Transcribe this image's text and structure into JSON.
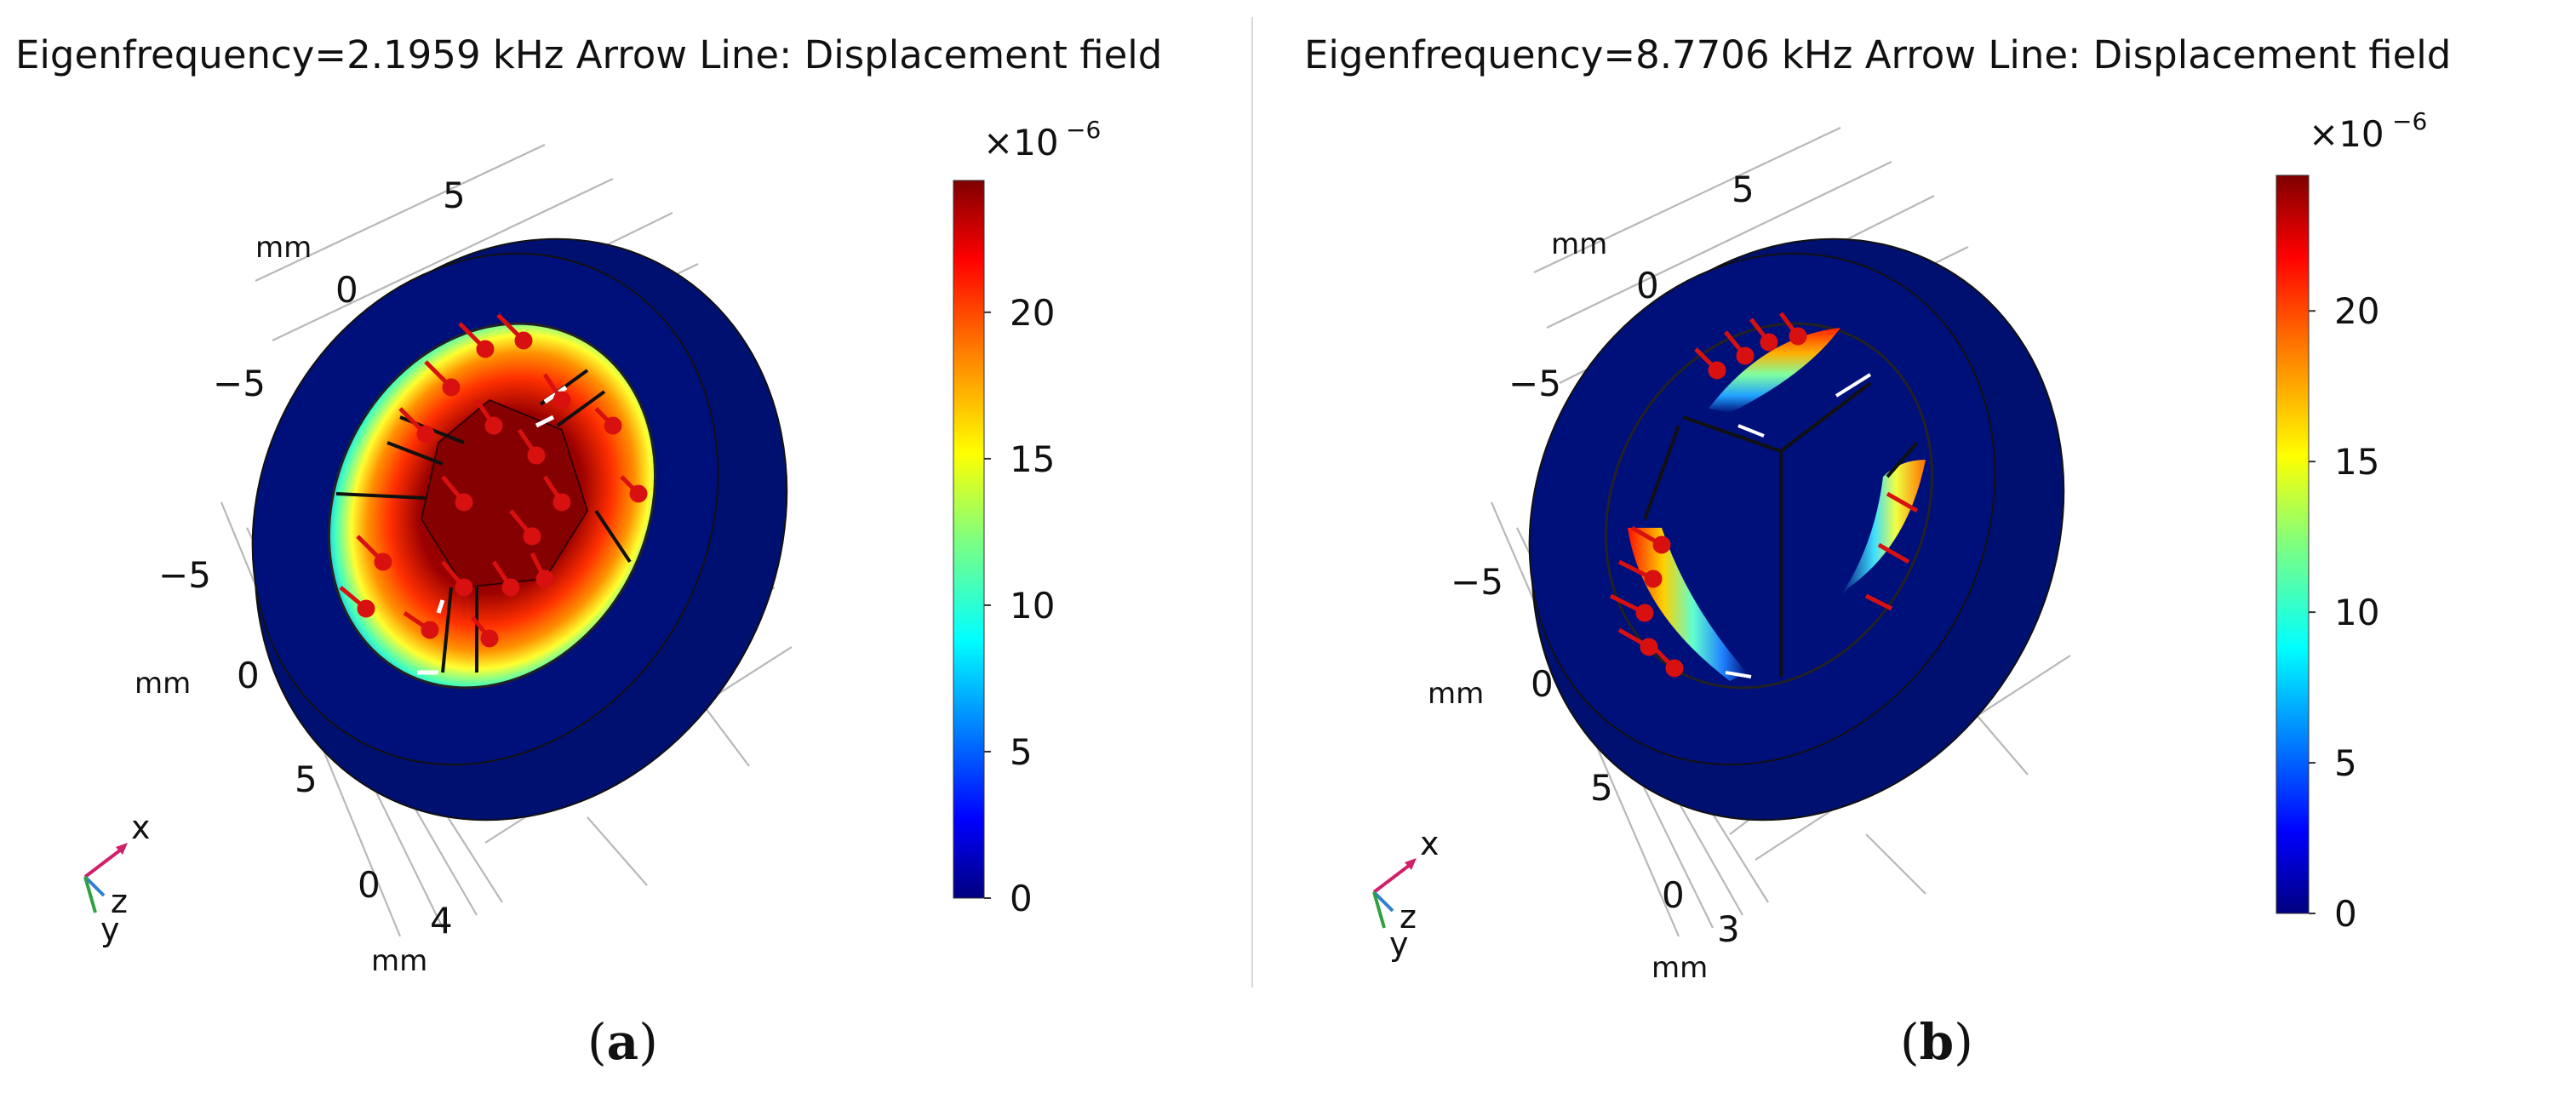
{
  "panels": [
    {
      "id": "a",
      "title": "Eigenfrequency=2.1959 kHz  Arrow Line: Displacement field",
      "caption_letter": "a",
      "colorbar": {
        "multiplier": "×10",
        "exponent": "−6",
        "ticks": [
          "20",
          "15",
          "10",
          "5",
          "0"
        ],
        "range": [
          0,
          24.5
        ]
      },
      "axis_labels": {
        "top_unit": "mm",
        "top_ticks": [
          "5",
          "0",
          "−5"
        ],
        "left_unit": "mm",
        "left_ticks": [
          "−5",
          "0",
          "5"
        ],
        "bottom_unit": "mm",
        "bottom_ticks": [
          "0",
          "4"
        ]
      },
      "triad": {
        "x": "x",
        "y": "y",
        "z": "z"
      }
    },
    {
      "id": "b",
      "title": "Eigenfrequency=8.7706 kHz  Arrow Line: Displacement field",
      "caption_letter": "b",
      "colorbar": {
        "multiplier": "×10",
        "exponent": "−6",
        "ticks": [
          "20",
          "15",
          "10",
          "5",
          "0"
        ],
        "range": [
          0,
          24.5
        ]
      },
      "axis_labels": {
        "top_unit": "mm",
        "top_ticks": [
          "5",
          "0",
          "−5"
        ],
        "left_unit": "mm",
        "left_ticks": [
          "−5",
          "0",
          "5"
        ],
        "bottom_unit": "mm",
        "bottom_ticks": [
          "0",
          "3"
        ]
      },
      "triad": {
        "x": "x",
        "y": "y",
        "z": "z"
      }
    }
  ],
  "colors": {
    "jet": [
      "#00007f",
      "#0000ff",
      "#007fff",
      "#00ffff",
      "#7fff7f",
      "#ffff00",
      "#ff7f00",
      "#ff0000",
      "#7f0000"
    ],
    "body": "#0a1a7a",
    "arrow": "#d81010",
    "triad_x": "#d0206a",
    "triad_z": "#3080d0",
    "triad_y": "#30a040"
  }
}
